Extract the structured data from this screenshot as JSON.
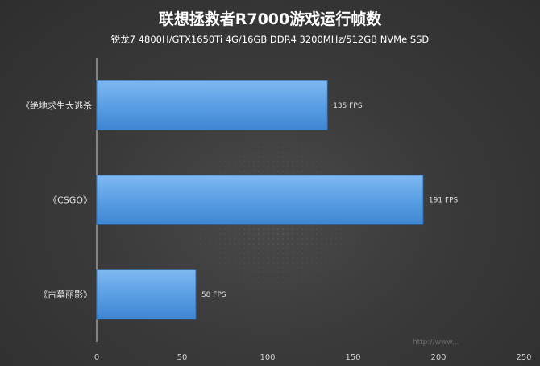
{
  "chart_data": {
    "type": "bar",
    "orientation": "horizontal",
    "title": "联想拯救者R7000游戏运行帧数",
    "subtitle": "锐龙7 4800H/GTX1650Ti 4G/16GB DDR4 3200MHz/512GB NVMe SSD",
    "categories": [
      "《绝地求生大逃杀",
      "《CSGO》",
      "《古墓丽影》"
    ],
    "values": [
      135,
      191,
      58
    ],
    "data_labels": [
      "135 FPS",
      "191 FPS",
      "58 FPS"
    ],
    "xlim": [
      0,
      250
    ],
    "xticks": [
      0,
      50,
      100,
      150,
      200,
      250
    ],
    "xlabel": "",
    "ylabel": "",
    "grid": false,
    "bar_color": "#5aa0e6",
    "background": "#3a3a3a"
  },
  "watermark": "http://www..."
}
